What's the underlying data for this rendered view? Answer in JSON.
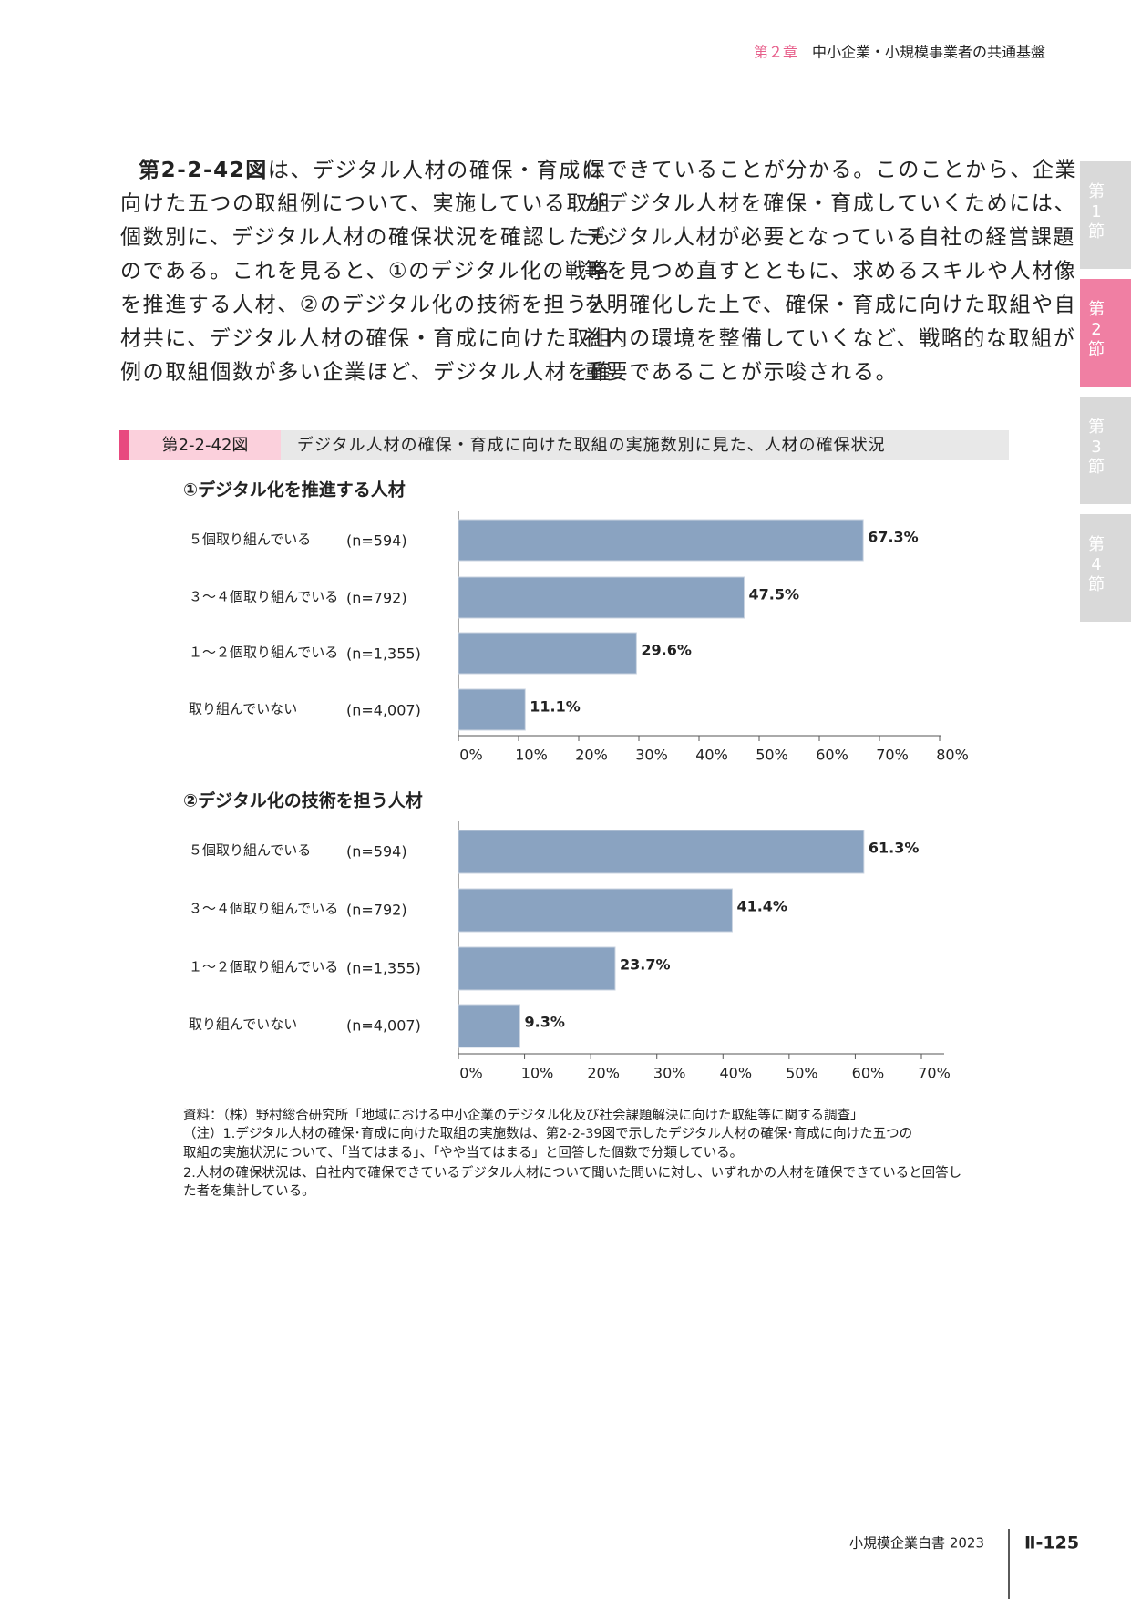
{
  "header": {
    "chapter": "第２章",
    "title": "中小企業・小規模事業者の共通基盤"
  },
  "tabs": [
    [
      "第",
      "1",
      "節"
    ],
    [
      "第",
      "2",
      "節"
    ],
    [
      "第",
      "3",
      "節"
    ],
    [
      "第",
      "4",
      "節"
    ]
  ],
  "active_tab": 1,
  "body": {
    "ref": "第2-2-42図",
    "left": [
      "は、デジタル人材の確保・育成に",
      "向けた五つの取組例について、実施している取組",
      "個数別に、デジタル人材の確保状況を確認したも",
      "のである。これを見ると、①のデジタル化の戦略",
      "を推進する人材、②のデジタル化の技術を担う人",
      "材共に、デジタル人材の確保・育成に向けた取組",
      "例の取組個数が多い企業ほど、デジタル人材を確"
    ],
    "right": [
      "保できていることが分かる。このことから、企業",
      "がデジタル人材を確保・育成していくためには、",
      "デジタル人材が必要となっている自社の経営課題",
      "等を見つめ直すとともに、求めるスキルや人材像",
      "を明確化した上で、確保・育成に向けた取組や自",
      "社内の環境を整備していくなど、戦略的な取組が",
      "重要であることが示唆される。"
    ]
  },
  "figure": {
    "label": "第2-2-42図",
    "title": "デジタル人材の確保・育成に向けた取組の実施数別に見た、人材の確保状況"
  },
  "chart_data": [
    {
      "type": "bar",
      "orientation": "horizontal",
      "title": "①デジタル化を推進する人材",
      "categories": [
        "５個取り組んでいる",
        "３～４個取り組んでいる",
        "１～２個取り組んでいる",
        "取り組んでいない"
      ],
      "n_labels": [
        "(n=594)",
        "(n=792)",
        "(n=1,355)",
        "(n=4,007)"
      ],
      "values": [
        67.3,
        47.5,
        29.6,
        11.1
      ],
      "value_labels": [
        "67.3%",
        "47.5%",
        "29.6%",
        "11.1%"
      ],
      "color": "#8aa3c1",
      "xlim": [
        0,
        80
      ],
      "xticks": [
        {
          "value": 0,
          "label": "0%"
        },
        {
          "value": 10,
          "label": "10%"
        },
        {
          "value": 20,
          "label": "20%"
        },
        {
          "value": 30,
          "label": "30%"
        },
        {
          "value": 40,
          "label": "40%"
        },
        {
          "value": 50,
          "label": "50%"
        },
        {
          "value": 60,
          "label": "60%"
        },
        {
          "value": 70,
          "label": "70%"
        },
        {
          "value": 80,
          "label": "80%"
        }
      ]
    },
    {
      "type": "bar",
      "orientation": "horizontal",
      "title": "②デジタル化の技術を担う人材",
      "categories": [
        "５個取り組んでいる",
        "３～４個取り組んでいる",
        "１～２個取り組んでいる",
        "取り組んでいない"
      ],
      "n_labels": [
        "(n=594)",
        "(n=792)",
        "(n=1,355)",
        "(n=4,007)"
      ],
      "values": [
        61.3,
        41.4,
        23.7,
        9.3
      ],
      "value_labels": [
        "61.3%",
        "41.4%",
        "23.7%",
        "9.3%"
      ],
      "color": "#8aa3c1",
      "xlim": [
        0,
        70
      ],
      "xticks": [
        {
          "value": 0,
          "label": "0%"
        },
        {
          "value": 10,
          "label": "10%"
        },
        {
          "value": 20,
          "label": "20%"
        },
        {
          "value": 30,
          "label": "30%"
        },
        {
          "value": 40,
          "label": "40%"
        },
        {
          "value": 50,
          "label": "50%"
        },
        {
          "value": 60,
          "label": "60%"
        },
        {
          "value": 70,
          "label": "70%"
        }
      ]
    }
  ],
  "notes": [
    "資料：（株）野村総合研究所「地域における中小企業のデジタル化及び社会課題解決に向けた取組等に関する調査」",
    "（注）1.デジタル人材の確保･育成に向けた取組の実施数は、第2-2-39図で示したデジタル人材の確保･育成に向けた五つの",
    "取組の実施状況について、「当てはまる」、「やや当てはまる」と回答した個数で分類している。",
    "2.人材の確保状況は、自社内で確保できているデジタル人材について聞いた問いに対し、いずれかの人材を確保できていると回答し",
    "た者を集計している。"
  ],
  "footer": {
    "book": "小規模企業白書 2023",
    "page": "Ⅱ-125"
  }
}
